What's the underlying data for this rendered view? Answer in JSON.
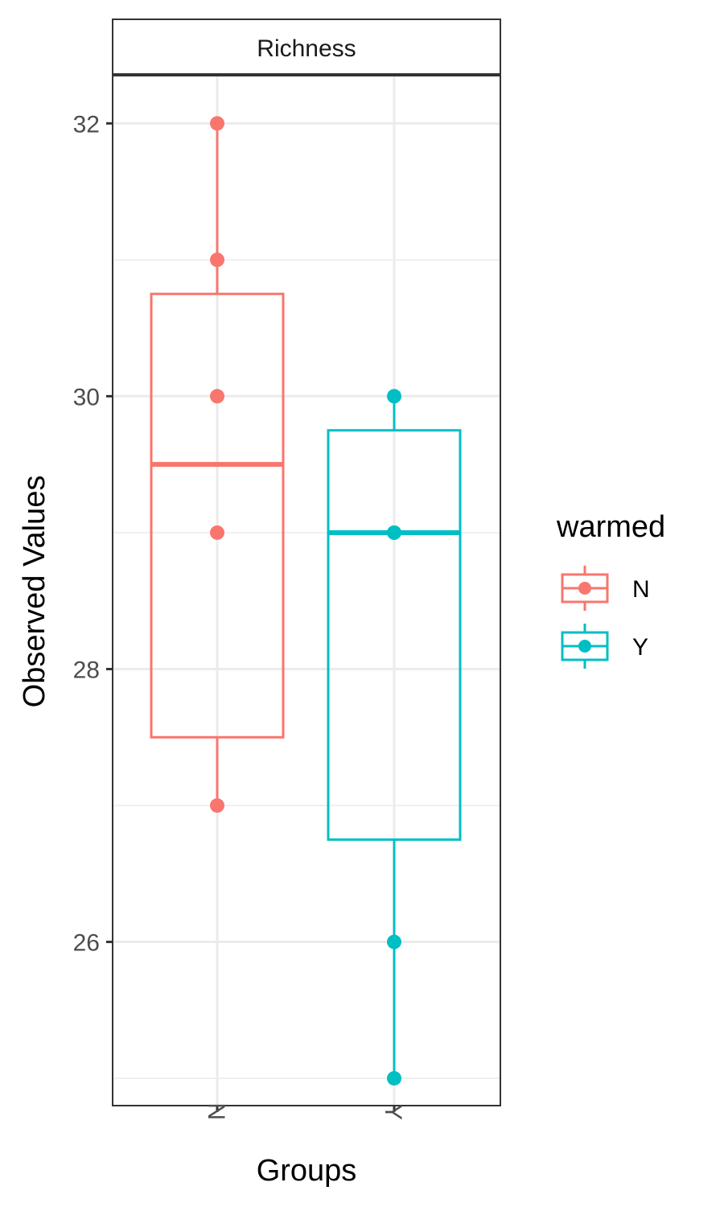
{
  "chart_data": {
    "type": "boxplot",
    "facet_label": "Richness",
    "xlabel": "Groups",
    "ylabel": "Observed Values",
    "ylim": [
      24.8,
      32.35
    ],
    "y_major_ticks": [
      26,
      28,
      30,
      32
    ],
    "y_minor_ticks": [
      25,
      27,
      29,
      31
    ],
    "categories": [
      "N",
      "Y"
    ],
    "legend": {
      "title": "warmed",
      "position": "right",
      "entries": [
        "N",
        "Y"
      ]
    },
    "grid": true,
    "series": [
      {
        "name": "N",
        "color": "#F8766D",
        "points": [
          32,
          31,
          30,
          29,
          27
        ],
        "box": {
          "whisker_low": 27,
          "q1": 27.5,
          "median": 29.5,
          "q3": 30.75,
          "whisker_high": 32
        }
      },
      {
        "name": "Y",
        "color": "#00BFC4",
        "points": [
          30,
          29,
          29,
          26,
          25
        ],
        "box": {
          "whisker_low": 25,
          "q1": 26.75,
          "median": 29,
          "q3": 29.75,
          "whisker_high": 30
        }
      }
    ]
  }
}
